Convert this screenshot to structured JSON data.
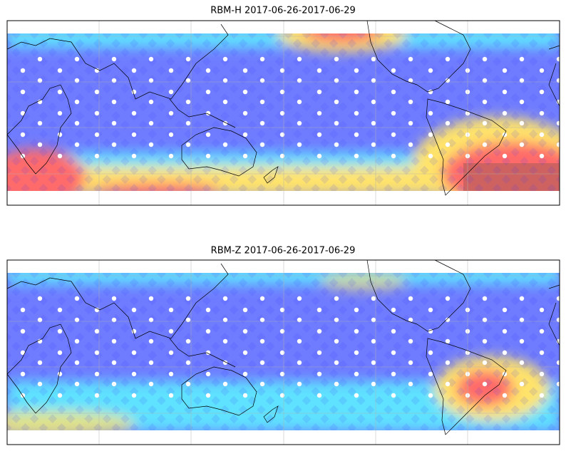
{
  "maps": [
    {
      "title": "RBM-H 2017-06-26-2017-06-29"
    },
    {
      "title": "RBM-Z 2017-06-26-2017-06-29"
    }
  ]
}
